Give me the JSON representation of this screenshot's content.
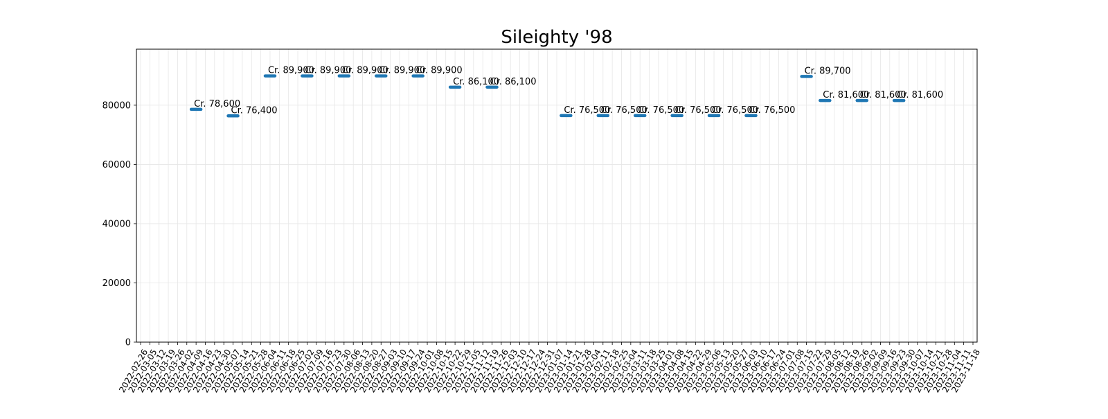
{
  "chart_data": {
    "type": "scatter",
    "title": "Sileighty '98",
    "xlabel": "",
    "ylabel": "",
    "ylim": [
      0,
      98920
    ],
    "y_ticks": [
      0,
      20000,
      40000,
      60000,
      80000
    ],
    "grid": true,
    "marker": "horizontal-bar",
    "x_categories": [
      "2022-02-26",
      "2022-03-05",
      "2022-03-12",
      "2022-03-19",
      "2022-03-26",
      "2022-04-02",
      "2022-04-09",
      "2022-04-16",
      "2022-04-23",
      "2022-04-30",
      "2022-05-07",
      "2022-05-14",
      "2022-05-21",
      "2022-05-28",
      "2022-06-04",
      "2022-06-11",
      "2022-06-18",
      "2022-06-25",
      "2022-07-02",
      "2022-07-09",
      "2022-07-16",
      "2022-07-23",
      "2022-07-30",
      "2022-08-06",
      "2022-08-13",
      "2022-08-20",
      "2022-08-27",
      "2022-09-03",
      "2022-09-10",
      "2022-09-17",
      "2022-09-24",
      "2022-10-01",
      "2022-10-08",
      "2022-10-15",
      "2022-10-22",
      "2022-10-29",
      "2022-11-05",
      "2022-11-12",
      "2022-11-19",
      "2022-11-26",
      "2022-12-03",
      "2022-12-10",
      "2022-12-17",
      "2022-12-24",
      "2022-12-31",
      "2023-01-07",
      "2023-01-14",
      "2023-01-21",
      "2023-01-28",
      "2023-02-04",
      "2023-02-11",
      "2023-02-18",
      "2023-02-25",
      "2023-03-04",
      "2023-03-11",
      "2023-03-18",
      "2023-03-25",
      "2023-04-01",
      "2023-04-08",
      "2023-04-15",
      "2023-04-22",
      "2023-04-29",
      "2023-05-06",
      "2023-05-13",
      "2023-05-20",
      "2023-05-27",
      "2023-06-03",
      "2023-06-10",
      "2023-06-17",
      "2023-06-24",
      "2023-07-01",
      "2023-07-08",
      "2023-07-15",
      "2023-07-22",
      "2023-07-29",
      "2023-08-05",
      "2023-08-12",
      "2023-08-19",
      "2023-08-26",
      "2023-09-02",
      "2023-09-09",
      "2023-09-16",
      "2023-09-23",
      "2023-09-30",
      "2023-10-07",
      "2023-10-14",
      "2023-10-21",
      "2023-10-28",
      "2023-11-04",
      "2023-11-11",
      "2023-11-18"
    ],
    "series": [
      {
        "color": "#1f77b4",
        "points": [
          {
            "x": "2022-04-09",
            "y": 78600,
            "label": "Cr. 78,600"
          },
          {
            "x": "2022-05-07",
            "y": 76400,
            "label": "Cr. 76,400"
          },
          {
            "x": "2022-06-04",
            "y": 89900,
            "label": "Cr. 89,900"
          },
          {
            "x": "2022-07-02",
            "y": 89900,
            "label": "Cr. 89,900"
          },
          {
            "x": "2022-07-30",
            "y": 89900,
            "label": "Cr. 89,900"
          },
          {
            "x": "2022-08-27",
            "y": 89900,
            "label": "Cr. 89,900"
          },
          {
            "x": "2022-09-24",
            "y": 89900,
            "label": "Cr. 89,900"
          },
          {
            "x": "2022-10-22",
            "y": 86100,
            "label": "Cr. 86,100"
          },
          {
            "x": "2022-11-19",
            "y": 86100,
            "label": "Cr. 86,100"
          },
          {
            "x": "2023-01-14",
            "y": 76500,
            "label": "Cr. 76,500"
          },
          {
            "x": "2023-02-11",
            "y": 76500,
            "label": "Cr. 76,500"
          },
          {
            "x": "2023-03-11",
            "y": 76500,
            "label": "Cr. 76,500"
          },
          {
            "x": "2023-04-08",
            "y": 76500,
            "label": "Cr. 76,500"
          },
          {
            "x": "2023-05-06",
            "y": 76500,
            "label": "Cr. 76,500"
          },
          {
            "x": "2023-06-03",
            "y": 76500,
            "label": "Cr. 76,500"
          },
          {
            "x": "2023-07-15",
            "y": 89700,
            "label": "Cr. 89,700"
          },
          {
            "x": "2023-07-29",
            "y": 81600,
            "label": "Cr. 81,600"
          },
          {
            "x": "2023-08-26",
            "y": 81600,
            "label": "Cr. 81,600"
          },
          {
            "x": "2023-09-23",
            "y": 81600,
            "label": "Cr. 81,600"
          }
        ]
      }
    ]
  }
}
